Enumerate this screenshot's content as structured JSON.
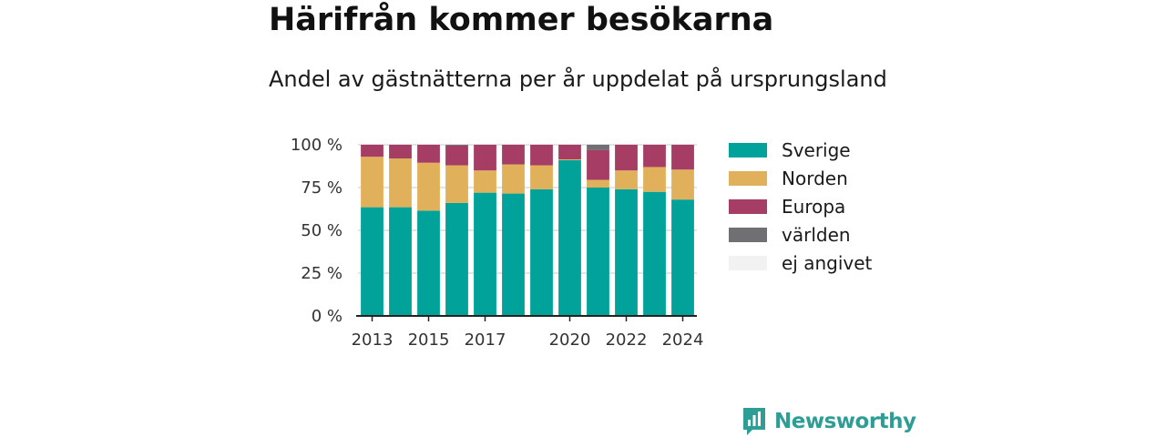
{
  "title": "Härifrån kommer besökarna",
  "subtitle": "Andel av gästnätterna per år uppdelat på ursprungsland",
  "brand": "Newsworthy",
  "chart_data": {
    "type": "bar",
    "stacked": true,
    "categories": [
      "2013",
      "2014",
      "2015",
      "2016",
      "2017",
      "2018",
      "2019",
      "2020",
      "2021",
      "2022",
      "2023",
      "2024"
    ],
    "x_tick_labels": [
      "2013",
      "",
      "2015",
      "",
      "2017",
      "",
      "",
      "2020",
      "",
      "2022",
      "",
      "2024"
    ],
    "y_ticks": [
      "0 %",
      "25 %",
      "50 %",
      "75 %",
      "100 %"
    ],
    "ylim": [
      0,
      100
    ],
    "grid": true,
    "legend_position": "right",
    "series": [
      {
        "name": "Sverige",
        "color": "#00a29a",
        "values": [
          63.5,
          63.5,
          61.5,
          66,
          72,
          71.5,
          74,
          91,
          75,
          74,
          72.5,
          68
        ]
      },
      {
        "name": "Norden",
        "color": "#e0b05a",
        "values": [
          29.5,
          28.5,
          28,
          22,
          13,
          17,
          14,
          0.5,
          4.5,
          11,
          14.5,
          17.5
        ]
      },
      {
        "name": "Europa",
        "color": "#a63d64",
        "values": [
          7,
          8,
          10.5,
          11.5,
          15,
          11.5,
          12,
          8.5,
          17.5,
          15,
          13,
          14.5
        ]
      },
      {
        "name": "världen",
        "color": "#6f6f74",
        "values": [
          0,
          0,
          0,
          0.5,
          0,
          0,
          0,
          0,
          3,
          0,
          0,
          0
        ]
      },
      {
        "name": "ej angivet",
        "color": "#f2f2f2",
        "values": [
          0,
          0,
          0,
          0,
          0,
          0,
          0,
          0,
          0,
          0,
          0,
          0
        ]
      }
    ]
  }
}
